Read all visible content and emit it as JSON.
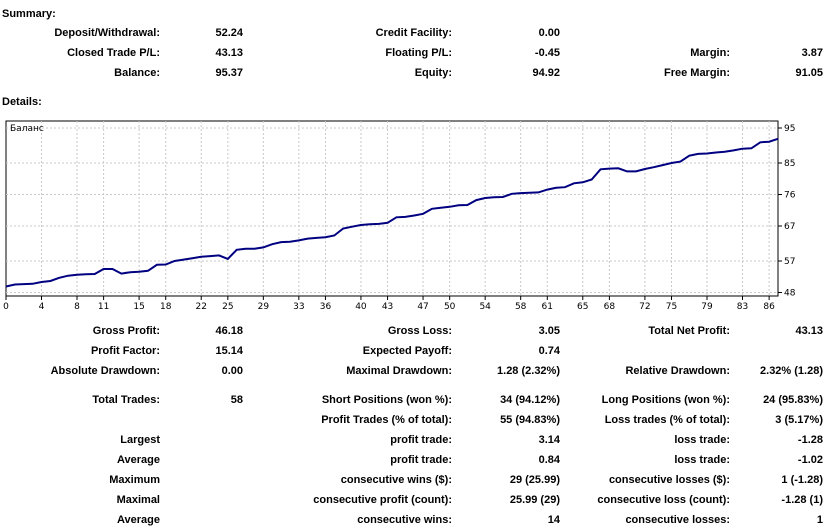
{
  "summary": {
    "heading": "Summary:",
    "rows": [
      [
        {
          "label": "Deposit/Withdrawal:",
          "value": "52.24"
        },
        {
          "label": "Credit Facility:",
          "value": "0.00"
        },
        {
          "label": "",
          "value": ""
        }
      ],
      [
        {
          "label": "Closed Trade P/L:",
          "value": "43.13"
        },
        {
          "label": "Floating P/L:",
          "value": "-0.45"
        },
        {
          "label": "Margin:",
          "value": "3.87"
        }
      ],
      [
        {
          "label": "Balance:",
          "value": "95.37"
        },
        {
          "label": "Equity:",
          "value": "94.92"
        },
        {
          "label": "Free Margin:",
          "value": "91.05"
        }
      ]
    ]
  },
  "details": {
    "heading": "Details:",
    "rows": [
      [
        {
          "label": "Gross Profit:",
          "value": "46.18"
        },
        {
          "label": "Gross Loss:",
          "value": "3.05"
        },
        {
          "label": "Total Net Profit:",
          "value": "43.13"
        }
      ],
      [
        {
          "label": "Profit Factor:",
          "value": "15.14"
        },
        {
          "label": "Expected Payoff:",
          "value": "0.74"
        },
        {
          "label": "",
          "value": ""
        }
      ],
      [
        {
          "label": "Absolute Drawdown:",
          "value": "0.00"
        },
        {
          "label": "Maximal Drawdown:",
          "value": "1.28 (2.32%)"
        },
        {
          "label": "Relative Drawdown:",
          "value": "2.32% (1.28)"
        }
      ],
      [
        {
          "label": "Total Trades:",
          "value": "58"
        },
        {
          "label": "Short Positions (won %):",
          "value": "34 (94.12%)"
        },
        {
          "label": "Long Positions (won %):",
          "value": "24 (95.83%)"
        }
      ],
      [
        {
          "label": "",
          "value": ""
        },
        {
          "label": "Profit Trades (% of total):",
          "value": "55 (94.83%)"
        },
        {
          "label": "Loss trades (% of total):",
          "value": "3 (5.17%)"
        }
      ],
      [
        {
          "label": "Largest",
          "value": ""
        },
        {
          "label": "profit trade:",
          "value": "3.14"
        },
        {
          "label": "loss trade:",
          "value": "-1.28"
        }
      ],
      [
        {
          "label": "Average",
          "value": ""
        },
        {
          "label": "profit trade:",
          "value": "0.84"
        },
        {
          "label": "loss trade:",
          "value": "-1.02"
        }
      ],
      [
        {
          "label": "Maximum",
          "value": ""
        },
        {
          "label": "consecutive wins ($):",
          "value": "29 (25.99)"
        },
        {
          "label": "consecutive losses ($):",
          "value": "1 (-1.28)"
        }
      ],
      [
        {
          "label": "Maximal",
          "value": ""
        },
        {
          "label": "consecutive profit (count):",
          "value": "25.99 (29)"
        },
        {
          "label": "consecutive loss (count):",
          "value": "-1.28 (1)"
        }
      ],
      [
        {
          "label": "Average",
          "value": ""
        },
        {
          "label": "consecutive wins:",
          "value": "14"
        },
        {
          "label": "consecutive losses:",
          "value": "1"
        }
      ]
    ]
  },
  "chart_data": {
    "type": "line",
    "title": "Баланс",
    "xlabel": "",
    "ylabel": "",
    "x_ticks": [
      "0",
      "4",
      "8",
      "11",
      "15",
      "18",
      "22",
      "25",
      "29",
      "33",
      "36",
      "40",
      "43",
      "47",
      "50",
      "54",
      "58",
      "61",
      "65",
      "68",
      "72",
      "75",
      "79",
      "83",
      "86"
    ],
    "y_ticks": [
      "95",
      "85",
      "76",
      "67",
      "57",
      "48"
    ],
    "xlim": [
      0,
      87
    ],
    "ylim": [
      47,
      97
    ],
    "grid": true,
    "line_color": "#000080",
    "series": [
      {
        "x": [
          0,
          1,
          2,
          3,
          4,
          5,
          6,
          7,
          8,
          9,
          10,
          11,
          12,
          13,
          14,
          15,
          16,
          17,
          18,
          19,
          20,
          21,
          22,
          23,
          24,
          25,
          26,
          27,
          28,
          29,
          30,
          31,
          32,
          33,
          34,
          35,
          36,
          37,
          38,
          39,
          40,
          41,
          42,
          43,
          44,
          45,
          46,
          47,
          48,
          49,
          50,
          51,
          52,
          53,
          54,
          55,
          56,
          57,
          58,
          59,
          60,
          61,
          62,
          63,
          64,
          65,
          66,
          67,
          68,
          69,
          70,
          71,
          72,
          73,
          74,
          75,
          76,
          77,
          78,
          79,
          80,
          81,
          82,
          83,
          84,
          85,
          86,
          87
        ],
        "y": [
          49.7,
          50.3,
          50.4,
          50.5,
          51.0,
          51.3,
          52.2,
          52.8,
          53.1,
          53.2,
          53.3,
          54.7,
          54.7,
          53.4,
          53.8,
          53.9,
          54.2,
          55.9,
          56.0,
          57.0,
          57.4,
          57.8,
          58.2,
          58.4,
          58.6,
          57.6,
          60.2,
          60.5,
          60.5,
          60.9,
          61.8,
          62.4,
          62.5,
          62.9,
          63.4,
          63.6,
          63.8,
          64.3,
          66.3,
          66.8,
          67.3,
          67.5,
          67.6,
          67.9,
          69.5,
          69.6,
          70.0,
          70.5,
          71.9,
          72.2,
          72.5,
          72.9,
          73.0,
          74.4,
          75.0,
          75.2,
          75.3,
          76.2,
          76.4,
          76.5,
          76.6,
          77.4,
          77.9,
          78.1,
          79.2,
          79.5,
          80.3,
          83.2,
          83.4,
          83.5,
          82.6,
          82.6,
          83.3,
          83.8,
          84.4,
          85.0,
          85.4,
          87.1,
          87.6,
          87.7,
          88.0,
          88.2,
          88.6,
          89.1,
          89.2,
          90.9,
          91.1,
          91.9
        ]
      }
    ]
  }
}
